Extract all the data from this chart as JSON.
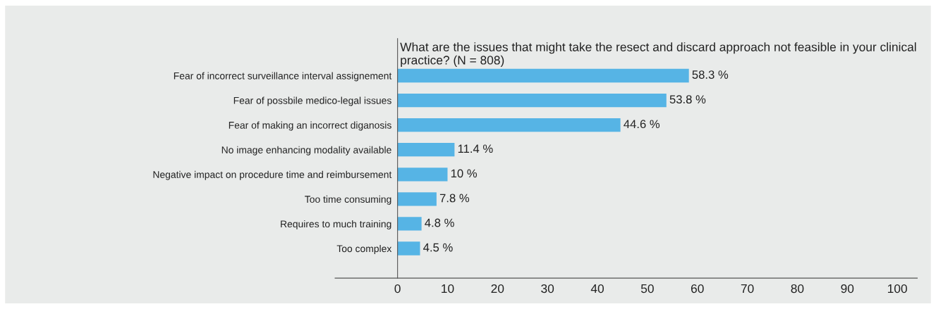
{
  "chart_data": {
    "type": "bar",
    "orientation": "horizontal",
    "title": "What are the issues that might take the resect and discard approach not feasible in your clinical practice? (N = 808)",
    "categories": [
      "Fear of incorrect surveillance interval assignement",
      "Fear of possbile medico-legal issues",
      "Fear of making an incorrect diganosis",
      "No image enhancing modality available",
      "Negative impact on procedure time and reimbursement",
      "Too time consuming",
      "Requires to much training",
      "Too complex"
    ],
    "values": [
      58.3,
      53.8,
      44.6,
      11.4,
      10,
      7.8,
      4.8,
      4.5
    ],
    "value_labels": [
      "58.3 %",
      "53.8 %",
      "44.6 %",
      "11.4 %",
      "10 %",
      "7.8 %",
      "4.8 %",
      "4.5 %"
    ],
    "color": "#56b4e5",
    "xlim": [
      -12.5,
      104
    ],
    "xticks": [
      0,
      10,
      20,
      30,
      40,
      50,
      60,
      70,
      80,
      90,
      100
    ],
    "grid": false,
    "legend": false
  }
}
